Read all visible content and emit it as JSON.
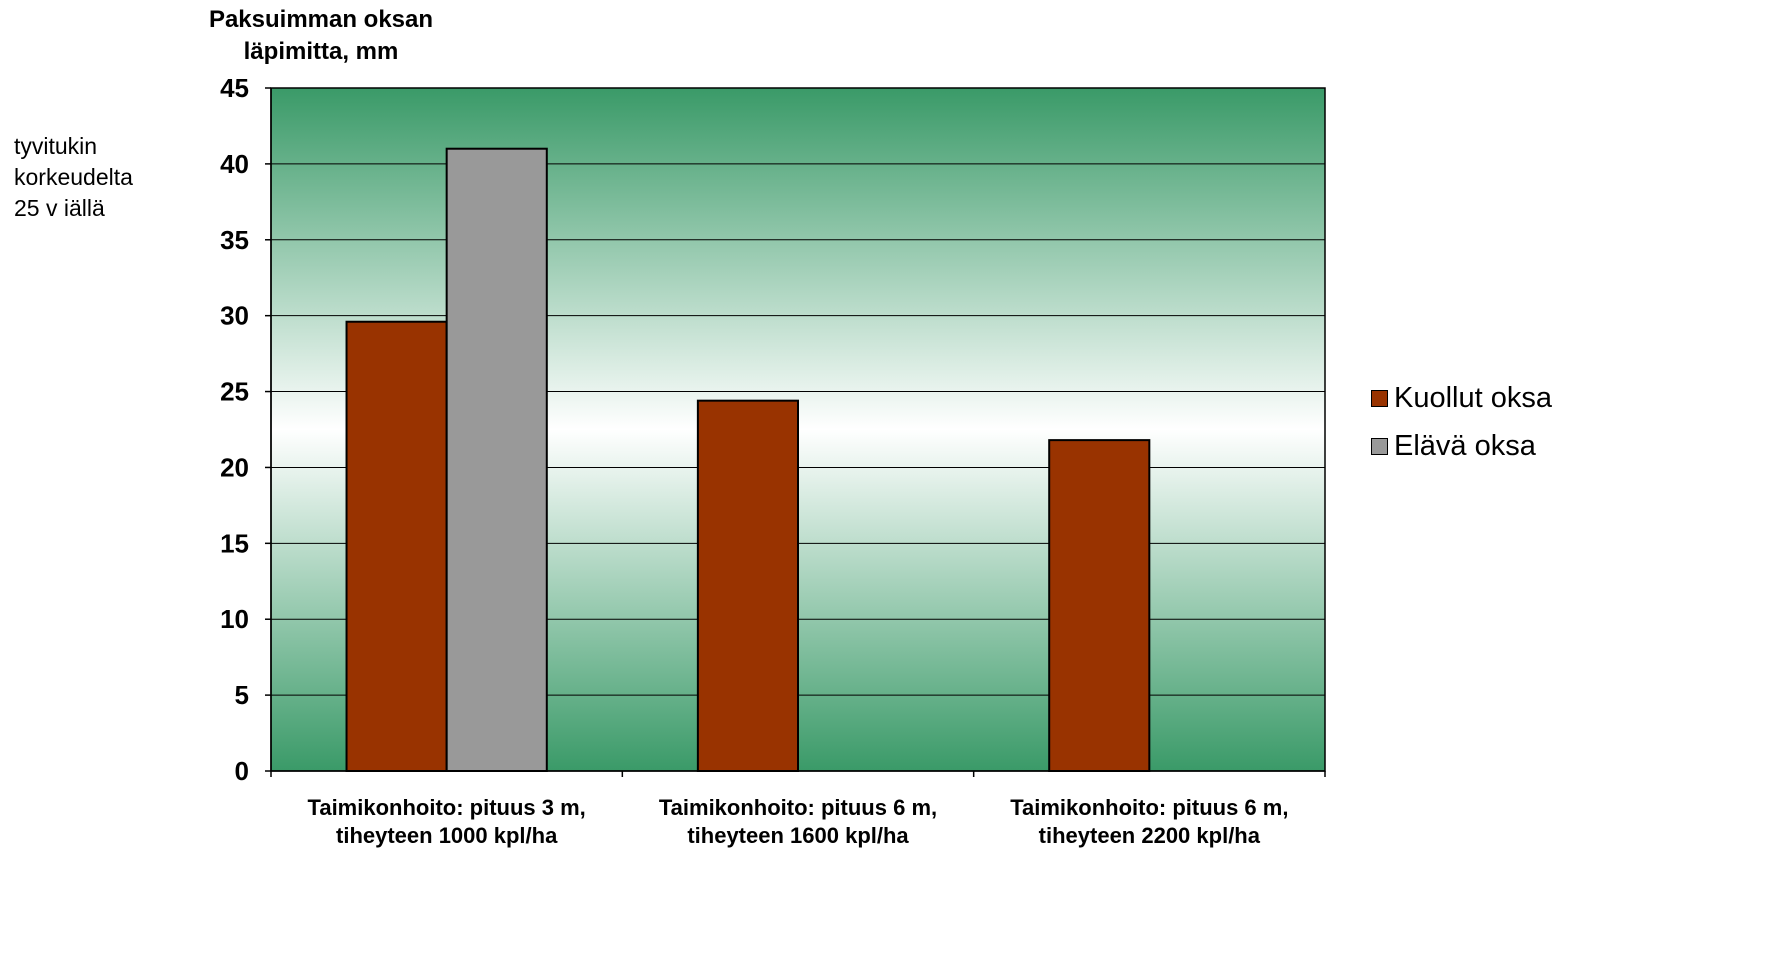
{
  "chart_data": {
    "type": "bar",
    "title_lines": [
      "Paksuimman oksan",
      "läpimitta, mm"
    ],
    "side_note_lines": [
      "tyvitukin",
      "korkeudelta",
      "25 v iällä"
    ],
    "categories": [
      [
        "Taimikonhoito: pituus 3 m,",
        "tiheyteen 1000 kpl/ha"
      ],
      [
        "Taimikonhoito: pituus 6 m,",
        "tiheyteen  1600 kpl/ha"
      ],
      [
        "Taimikonhoito: pituus 6 m,",
        "tiheyteen 2200 kpl/ha"
      ]
    ],
    "series": [
      {
        "name": "Kuollut oksa",
        "color": "#993300",
        "values": [
          29.6,
          24.4,
          21.8
        ]
      },
      {
        "name": "Elävä oksa",
        "color": "#999999",
        "values": [
          41.0,
          null,
          null
        ]
      }
    ],
    "ylim": [
      0,
      45
    ],
    "yticks": [
      0,
      5,
      10,
      15,
      20,
      25,
      30,
      35,
      40,
      45
    ],
    "grid": true,
    "legend_position": "right",
    "background_gradient": [
      "#3a9a68",
      "#ffffff"
    ]
  }
}
